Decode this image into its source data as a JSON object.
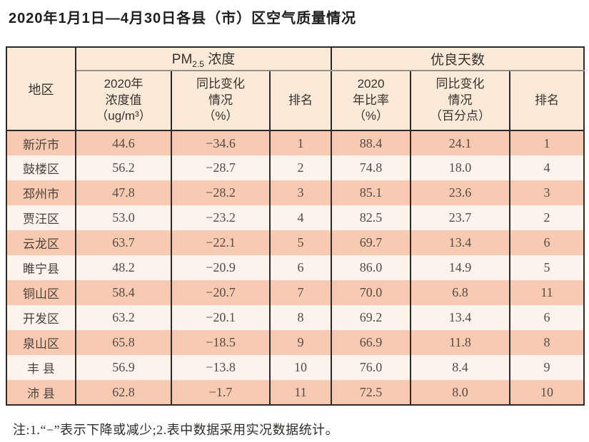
{
  "page": {
    "title": "2020年1月1日—4月30日各县（市）区空气质量情况"
  },
  "table": {
    "corner_header": "地区",
    "group_headers": {
      "pm25": {
        "prefix": "PM",
        "sub": "2.5",
        "suffix": " 浓度"
      },
      "good_days": "优良天数"
    },
    "sub_headers": {
      "pm_value": "2020年\n浓度值\n（ug/m³）",
      "pm_change": "同比变化\n情况\n（%）",
      "pm_rank": "排名",
      "gd_ratio": "2020\n年比率\n（%）",
      "gd_change": "同比变化\n情况\n（百分点）",
      "gd_rank": "排名"
    },
    "rows": [
      {
        "region": "新沂市",
        "pm_value": "44.6",
        "pm_change": "−34.6",
        "pm_rank": "1",
        "gd_ratio": "88.4",
        "gd_change": "24.1",
        "gd_rank": "1"
      },
      {
        "region": "鼓楼区",
        "pm_value": "56.2",
        "pm_change": "−28.7",
        "pm_rank": "2",
        "gd_ratio": "74.8",
        "gd_change": "18.0",
        "gd_rank": "4"
      },
      {
        "region": "邳州市",
        "pm_value": "47.8",
        "pm_change": "−28.2",
        "pm_rank": "3",
        "gd_ratio": "85.1",
        "gd_change": "23.6",
        "gd_rank": "3"
      },
      {
        "region": "贾汪区",
        "pm_value": "53.0",
        "pm_change": "−23.2",
        "pm_rank": "4",
        "gd_ratio": "82.5",
        "gd_change": "23.7",
        "gd_rank": "2"
      },
      {
        "region": "云龙区",
        "pm_value": "63.7",
        "pm_change": "−22.1",
        "pm_rank": "5",
        "gd_ratio": "69.7",
        "gd_change": "13.4",
        "gd_rank": "6"
      },
      {
        "region": "睢宁县",
        "pm_value": "48.2",
        "pm_change": "−20.9",
        "pm_rank": "6",
        "gd_ratio": "86.0",
        "gd_change": "14.9",
        "gd_rank": "5"
      },
      {
        "region": "铜山区",
        "pm_value": "58.4",
        "pm_change": "−20.7",
        "pm_rank": "7",
        "gd_ratio": "70.0",
        "gd_change": "6.8",
        "gd_rank": "11"
      },
      {
        "region": "开发区",
        "pm_value": "63.2",
        "pm_change": "−20.1",
        "pm_rank": "8",
        "gd_ratio": "69.2",
        "gd_change": "13.4",
        "gd_rank": "6"
      },
      {
        "region": "泉山区",
        "pm_value": "65.8",
        "pm_change": "−18.5",
        "pm_rank": "9",
        "gd_ratio": "66.9",
        "gd_change": "11.8",
        "gd_rank": "8"
      },
      {
        "region": "丰 县",
        "pm_value": "56.9",
        "pm_change": "−13.8",
        "pm_rank": "10",
        "gd_ratio": "76.0",
        "gd_change": "8.4",
        "gd_rank": "9"
      },
      {
        "region": "沛 县",
        "pm_value": "62.8",
        "pm_change": "−1.7",
        "pm_rank": "11",
        "gd_ratio": "72.5",
        "gd_change": "8.0",
        "gd_rank": "10"
      }
    ]
  },
  "note": "注:1.“−”表示下降或减少;2.表中数据采用实况数据统计。",
  "colors": {
    "row_salmon": "#f8cab2",
    "row_cream": "#fcf3ea",
    "header_bg": "#fcead9",
    "border_dark": "#2e2a27",
    "group_divider_gray": "#979089"
  },
  "chart_data": {
    "type": "table",
    "title": "2020年1月1日—4月30日各县（市）区空气质量情况",
    "columns": [
      "地区",
      "PM2.5浓度 2020年浓度值（ug/m³）",
      "PM2.5浓度 同比变化情况（%）",
      "PM2.5浓度 排名",
      "优良天数 2020年比率（%）",
      "优良天数 同比变化情况（百分点）",
      "优良天数 排名"
    ],
    "rows": [
      [
        "新沂市",
        44.6,
        -34.6,
        1,
        88.4,
        24.1,
        1
      ],
      [
        "鼓楼区",
        56.2,
        -28.7,
        2,
        74.8,
        18.0,
        4
      ],
      [
        "邳州市",
        47.8,
        -28.2,
        3,
        85.1,
        23.6,
        3
      ],
      [
        "贾汪区",
        53.0,
        -23.2,
        4,
        82.5,
        23.7,
        2
      ],
      [
        "云龙区",
        63.7,
        -22.1,
        5,
        69.7,
        13.4,
        6
      ],
      [
        "睢宁县",
        48.2,
        -20.9,
        6,
        86.0,
        14.9,
        5
      ],
      [
        "铜山区",
        58.4,
        -20.7,
        7,
        70.0,
        6.8,
        11
      ],
      [
        "开发区",
        63.2,
        -20.1,
        8,
        69.2,
        13.4,
        6
      ],
      [
        "泉山区",
        65.8,
        -18.5,
        9,
        66.9,
        11.8,
        8
      ],
      [
        "丰县",
        56.9,
        -13.8,
        10,
        76.0,
        8.4,
        9
      ],
      [
        "沛县",
        62.8,
        -1.7,
        11,
        72.5,
        8.0,
        10
      ]
    ]
  }
}
